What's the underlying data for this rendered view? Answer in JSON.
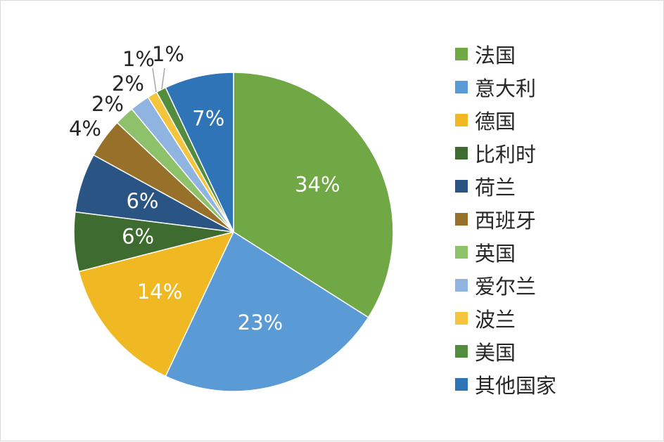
{
  "chart_data": {
    "type": "pie",
    "title": "",
    "start_angle": "12 o'clock",
    "direction": "clockwise",
    "slices": [
      {
        "label": "法国",
        "value": 34,
        "display": "34%",
        "color": "#70a845"
      },
      {
        "label": "意大利",
        "value": 23,
        "display": "23%",
        "color": "#5b9bd5"
      },
      {
        "label": "德国",
        "value": 14,
        "display": "14%",
        "color": "#f0b924"
      },
      {
        "label": "比利时",
        "value": 6,
        "display": "6%",
        "color": "#3e6b2f"
      },
      {
        "label": "荷兰",
        "value": 6,
        "display": "6%",
        "color": "#2a5483"
      },
      {
        "label": "西班牙",
        "value": 4,
        "display": "4%",
        "color": "#97712a"
      },
      {
        "label": "英国",
        "value": 2,
        "display": "2%",
        "color": "#8dc26a"
      },
      {
        "label": "爱尔兰",
        "value": 2,
        "display": "2%",
        "color": "#8fb4e0"
      },
      {
        "label": "波兰",
        "value": 1,
        "display": "1%",
        "color": "#f4c53c"
      },
      {
        "label": "美国",
        "value": 1,
        "display": "1%",
        "color": "#548c3d"
      },
      {
        "label": "其他国家",
        "value": 7,
        "display": "7%",
        "color": "#2e74b6"
      }
    ],
    "legend_position": "right"
  }
}
